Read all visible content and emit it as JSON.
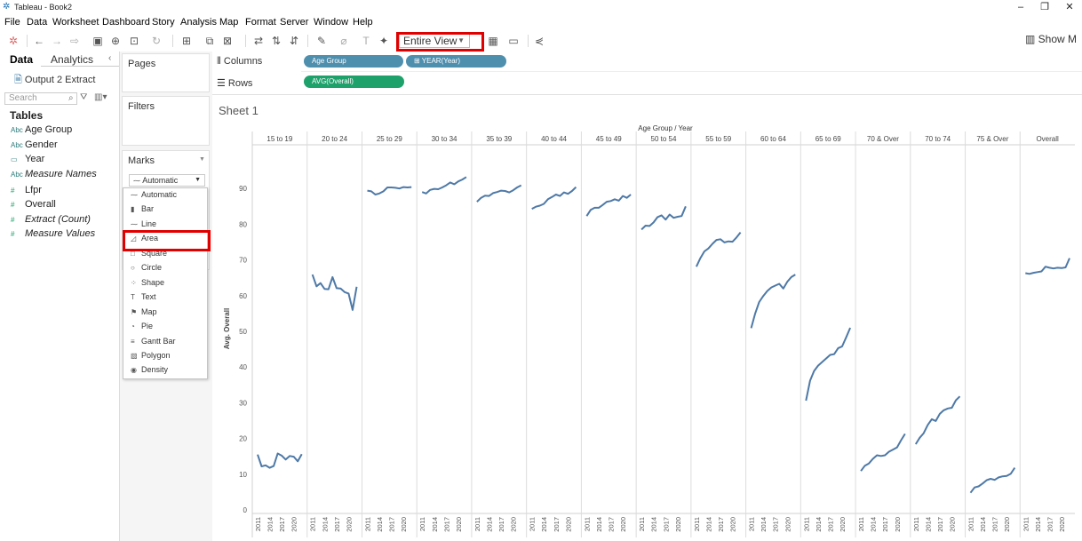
{
  "window": {
    "title": "Tableau - Book2",
    "controls": [
      "–",
      "❐",
      "✕"
    ]
  },
  "menu": [
    "File",
    "Data",
    "Worksheet",
    "Dashboard",
    "Story",
    "Analysis",
    "Map",
    "Format",
    "Server",
    "Window",
    "Help"
  ],
  "toolbar": {
    "fit_value": "Entire View",
    "show_me_label": "Show M"
  },
  "data_pane": {
    "tab_data": "Data",
    "tab_analytics": "Analytics",
    "datasource": "Output 2 Extract",
    "search_placeholder": "Search",
    "tables_title": "Tables",
    "dimensions": [
      {
        "icon": "Abc",
        "label": "Age Group"
      },
      {
        "icon": "Abc",
        "label": "Gender"
      },
      {
        "icon": "▭",
        "label": "Year"
      },
      {
        "icon": "Abc",
        "label": "Measure Names",
        "italic": true
      }
    ],
    "measures": [
      {
        "icon": "#",
        "label": "Lfpr"
      },
      {
        "icon": "#",
        "label": "Overall"
      },
      {
        "icon": "#",
        "label": "Extract (Count)",
        "italic": true
      },
      {
        "icon": "#",
        "label": "Measure Values",
        "italic": true
      }
    ]
  },
  "cards": {
    "pages": "Pages",
    "filters": "Filters",
    "marks": "Marks",
    "mark_type_selected": "Automatic"
  },
  "mark_options": [
    "Automatic",
    "Bar",
    "Line",
    "Area",
    "Square",
    "Circle",
    "Shape",
    "Text",
    "Map",
    "Pie",
    "Gantt Bar",
    "Polygon",
    "Density"
  ],
  "shelves": {
    "columns_label": "Columns",
    "rows_label": "Rows",
    "columns_pills": [
      "Age Group",
      "⊞ YEAR(Year)"
    ],
    "rows_pills": [
      "AVG(Overall)"
    ]
  },
  "sheet": {
    "title": "Sheet 1"
  },
  "chart_data": {
    "type": "line",
    "header_title": "Age Group / Year",
    "ylabel": "Avg. Overall",
    "ylim": [
      0,
      100
    ],
    "yticks": [
      0,
      10,
      20,
      30,
      40,
      50,
      60,
      70,
      80,
      90
    ],
    "x_tick_labels": [
      "2011",
      "2014",
      "2017",
      "2020"
    ],
    "panes": [
      {
        "name": "15 to 19",
        "values": [
          15.5,
          12.2,
          12.5,
          11.8,
          12.3,
          15.8,
          15.2,
          14.1,
          15.1,
          14.9,
          13.6,
          15.6
        ]
      },
      {
        "name": "20 to 24",
        "values": [
          65.9,
          62.6,
          63.5,
          61.9,
          61.8,
          65.2,
          62.1,
          62.0,
          61.0,
          60.6,
          56.0,
          62.5
        ]
      },
      {
        "name": "25 to 29",
        "values": [
          89.4,
          89.2,
          88.3,
          88.6,
          89.2,
          90.3,
          90.3,
          90.2,
          90.0,
          90.4,
          90.3,
          90.4
        ]
      },
      {
        "name": "30 to 34",
        "values": [
          89.0,
          88.6,
          89.6,
          89.9,
          89.8,
          90.3,
          90.9,
          91.7,
          91.2,
          92.0,
          92.5,
          93.2
        ]
      },
      {
        "name": "35 to 39",
        "values": [
          86.3,
          87.4,
          88.0,
          87.9,
          88.7,
          89.0,
          89.4,
          89.3,
          88.9,
          89.5,
          90.3,
          90.9
        ]
      },
      {
        "name": "40 to 44",
        "values": [
          84.3,
          84.9,
          85.2,
          85.7,
          87.0,
          87.6,
          88.3,
          87.9,
          88.9,
          88.5,
          89.3,
          90.4
        ]
      },
      {
        "name": "45 to 49",
        "values": [
          82.3,
          84.0,
          84.6,
          84.6,
          85.4,
          86.3,
          86.5,
          87.0,
          86.6,
          87.9,
          87.4,
          88.3
        ]
      },
      {
        "name": "50 to 54",
        "values": [
          78.5,
          79.6,
          79.5,
          80.5,
          82.0,
          82.5,
          81.3,
          82.7,
          81.8,
          82.1,
          82.3,
          85.0
        ]
      },
      {
        "name": "55 to 59",
        "values": [
          68.1,
          70.5,
          72.4,
          73.2,
          74.5,
          75.6,
          75.8,
          74.9,
          75.2,
          75.1,
          76.3,
          77.7
        ]
      },
      {
        "name": "60 to 64",
        "values": [
          50.9,
          55.0,
          58.2,
          59.9,
          61.3,
          62.3,
          62.8,
          63.3,
          62.0,
          63.9,
          65.2,
          65.9
        ]
      },
      {
        "name": "65 to 69",
        "values": [
          30.6,
          36.2,
          38.9,
          40.4,
          41.4,
          42.4,
          43.4,
          43.6,
          45.3,
          45.8,
          48.3,
          51.0
        ]
      },
      {
        "name": "70 & Over",
        "values": [
          10.9,
          12.4,
          13.0,
          14.3,
          15.3,
          15.1,
          15.3,
          16.3,
          16.9,
          17.5,
          19.5,
          21.3
        ]
      },
      {
        "name": "70 to 74",
        "values": [
          18.4,
          20.2,
          21.5,
          23.8,
          25.4,
          24.9,
          26.9,
          27.9,
          28.4,
          28.6,
          30.7,
          31.8
        ]
      },
      {
        "name": "75 & Over",
        "values": [
          4.8,
          6.3,
          6.6,
          7.4,
          8.3,
          8.7,
          8.4,
          9.1,
          9.4,
          9.5,
          10.1,
          11.8
        ]
      },
      {
        "name": "Overall",
        "values": [
          66.3,
          66.1,
          66.4,
          66.6,
          66.8,
          68.1,
          67.8,
          67.6,
          67.8,
          67.7,
          67.9,
          70.5
        ]
      }
    ],
    "color": "#4e79a7",
    "grid": "vertical-pane-dividers"
  }
}
